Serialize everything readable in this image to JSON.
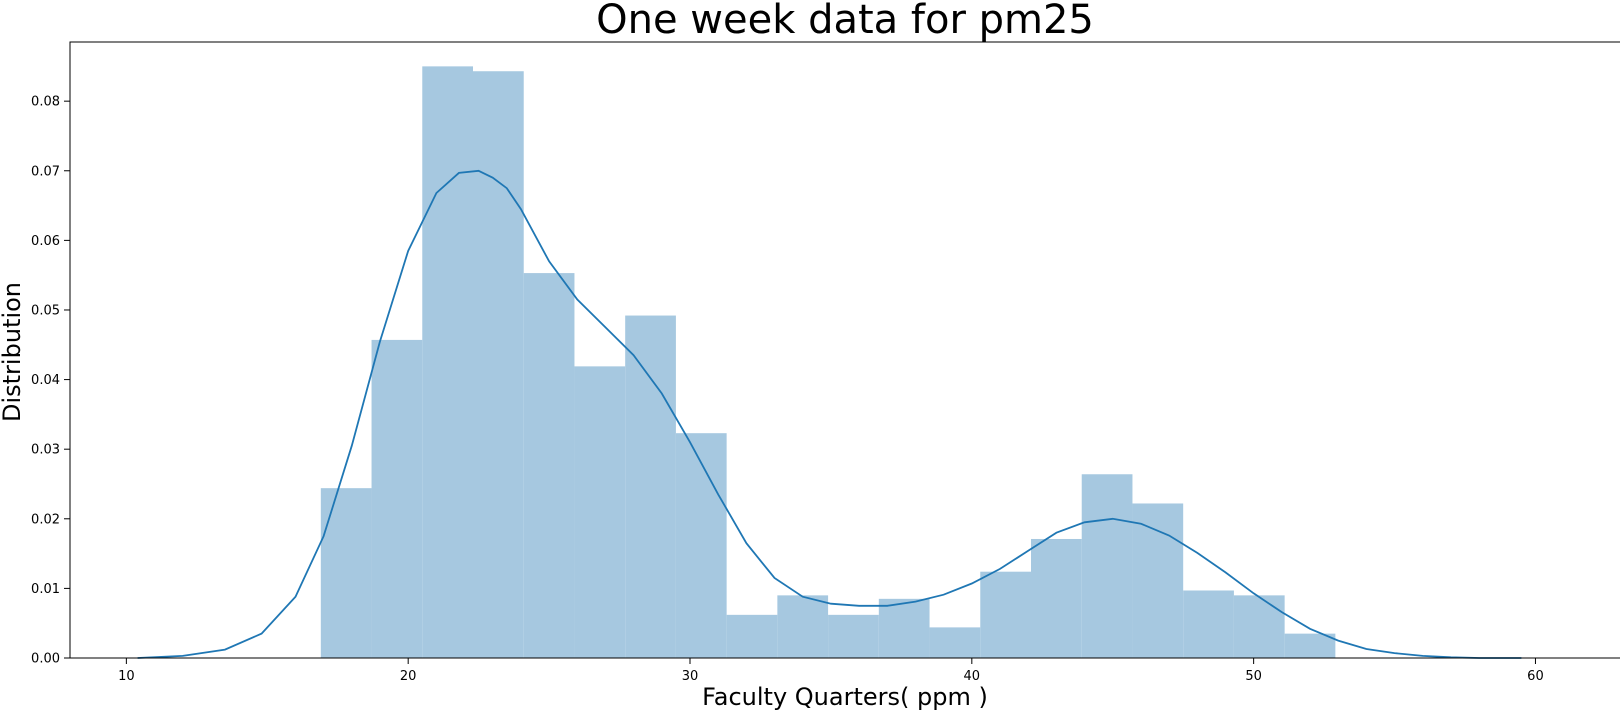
{
  "chart_data": {
    "type": "bar",
    "subtype": "histogram with density curve",
    "title": "One week data for pm25",
    "xlabel": "Faculty Quarters( ppm )",
    "ylabel": "Distribution",
    "xlim": [
      8.0,
      63.0
    ],
    "ylim": [
      0.0,
      0.0885
    ],
    "xticks": [
      10,
      20,
      30,
      40,
      50,
      60
    ],
    "xtick_labels": [
      "10",
      "20",
      "30",
      "40",
      "50",
      "60"
    ],
    "yticks": [
      0.0,
      0.01,
      0.02,
      0.03,
      0.04,
      0.05,
      0.06,
      0.07,
      0.08
    ],
    "ytick_labels": [
      "0.00",
      "0.01",
      "0.02",
      "0.03",
      "0.04",
      "0.05",
      "0.06",
      "0.07",
      "0.08"
    ],
    "grid": false,
    "legend": "none",
    "histogram": {
      "bin_edges": [
        16.9,
        18.7,
        20.5,
        22.3,
        24.1,
        25.9,
        27.7,
        29.5,
        31.3,
        33.1,
        34.9,
        36.7,
        38.5,
        40.3,
        42.1,
        43.9,
        45.7,
        47.5,
        49.3,
        51.1,
        52.9
      ],
      "values": [
        0.0244,
        0.0457,
        0.085,
        0.0843,
        0.0553,
        0.0419,
        0.0492,
        0.0323,
        0.0062,
        0.009,
        0.0062,
        0.0085,
        0.0044,
        0.0124,
        0.0171,
        0.0264,
        0.0222,
        0.0097,
        0.009,
        0.0035
      ],
      "color": "#a6c8e0"
    },
    "density_curve": {
      "x": [
        10.4,
        12.0,
        13.5,
        14.8,
        16.0,
        17.0,
        18.0,
        19.0,
        20.0,
        21.0,
        21.8,
        22.5,
        23.0,
        23.5,
        24.0,
        25.0,
        26.0,
        27.0,
        28.0,
        29.0,
        30.0,
        31.0,
        32.0,
        33.0,
        34.0,
        35.0,
        36.0,
        37.0,
        38.0,
        39.0,
        40.0,
        41.0,
        42.0,
        43.0,
        44.0,
        45.0,
        46.0,
        47.0,
        48.0,
        49.0,
        50.0,
        51.0,
        52.0,
        53.0,
        54.0,
        55.0,
        56.0,
        57.0,
        58.0,
        59.5
      ],
      "y": [
        0.0,
        0.0003,
        0.0012,
        0.0035,
        0.0088,
        0.0175,
        0.0305,
        0.0455,
        0.0585,
        0.0668,
        0.0697,
        0.07,
        0.069,
        0.0675,
        0.0645,
        0.057,
        0.0515,
        0.0475,
        0.0435,
        0.038,
        0.031,
        0.0235,
        0.0165,
        0.0115,
        0.0088,
        0.0078,
        0.0075,
        0.0075,
        0.0081,
        0.0091,
        0.0107,
        0.0128,
        0.0154,
        0.018,
        0.0195,
        0.02,
        0.0193,
        0.0176,
        0.0151,
        0.0123,
        0.0093,
        0.0066,
        0.0042,
        0.0025,
        0.0013,
        0.0007,
        0.0003,
        0.0001,
        0.0,
        0.0
      ],
      "color": "#1f77b4"
    }
  }
}
